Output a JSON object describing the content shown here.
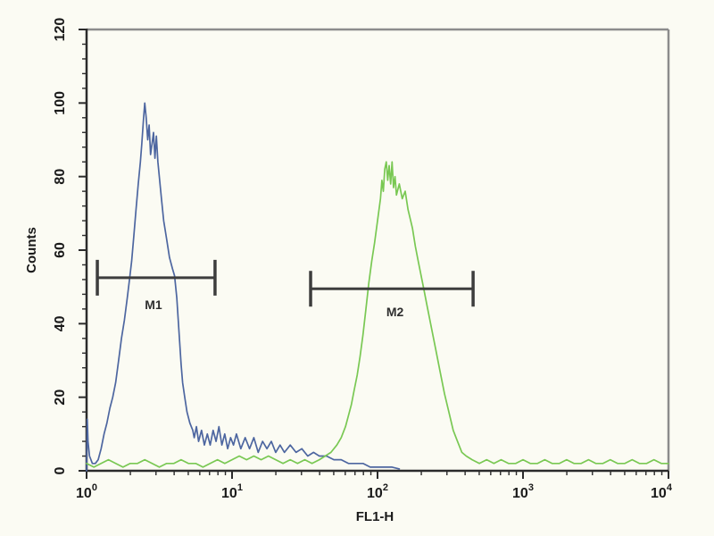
{
  "chart_data": {
    "type": "line",
    "chart_kind": "flow-cytometry-histogram",
    "title": "",
    "xlabel": "FL1-H",
    "ylabel": "Counts",
    "x_scale": "log10",
    "xlim_log10": [
      0,
      4
    ],
    "x_ticks": {
      "base": "10",
      "exponents": [
        "0",
        "1",
        "2",
        "3",
        "4"
      ]
    },
    "ylim": [
      0,
      120
    ],
    "y_ticks": [
      0,
      20,
      40,
      60,
      80,
      100,
      120
    ],
    "y_minor_step": 4,
    "grid": false,
    "legend": "none",
    "colors": {
      "blue_series": "#4d66a0",
      "green_series": "#79c853",
      "marker": "#3d3d3d",
      "axis": "#2b2b2b",
      "frame": "#8c8c8c",
      "tick_label": "#1a1a1a",
      "background": "#fbfbf3"
    },
    "peaks": [
      {
        "series": "blue",
        "x_log10": 0.4,
        "max_counts": 100
      },
      {
        "series": "green",
        "x_log10": 2.1,
        "max_counts": 84
      }
    ],
    "markers": [
      {
        "label": "M1",
        "x_from_log10": 0.074,
        "x_to_log10": 0.883,
        "y_counts": 52.5,
        "label_x_log10": 0.46,
        "label_y_counts": 44
      },
      {
        "label": "M2",
        "x_from_log10": 1.54,
        "x_to_log10": 2.657,
        "y_counts": 49.5,
        "label_x_log10": 2.12,
        "label_y_counts": 42
      }
    ],
    "series": [
      {
        "name": "blue-histogram",
        "color": "#4d66a0",
        "points": [
          [
            0.0,
            0
          ],
          [
            0.005,
            14
          ],
          [
            0.01,
            8
          ],
          [
            0.02,
            4
          ],
          [
            0.04,
            2
          ],
          [
            0.06,
            2
          ],
          [
            0.08,
            3
          ],
          [
            0.1,
            6
          ],
          [
            0.12,
            10
          ],
          [
            0.14,
            13
          ],
          [
            0.16,
            17
          ],
          [
            0.18,
            20
          ],
          [
            0.2,
            24
          ],
          [
            0.22,
            30
          ],
          [
            0.24,
            36
          ],
          [
            0.26,
            41
          ],
          [
            0.28,
            47
          ],
          [
            0.295,
            52
          ],
          [
            0.31,
            57
          ],
          [
            0.325,
            64
          ],
          [
            0.34,
            71
          ],
          [
            0.355,
            78
          ],
          [
            0.37,
            84
          ],
          [
            0.38,
            89
          ],
          [
            0.39,
            95
          ],
          [
            0.4,
            100
          ],
          [
            0.41,
            96
          ],
          [
            0.42,
            90
          ],
          [
            0.43,
            94
          ],
          [
            0.44,
            86
          ],
          [
            0.45,
            89
          ],
          [
            0.46,
            92
          ],
          [
            0.47,
            85
          ],
          [
            0.48,
            91
          ],
          [
            0.49,
            84
          ],
          [
            0.5,
            80
          ],
          [
            0.515,
            74
          ],
          [
            0.53,
            68
          ],
          [
            0.55,
            63
          ],
          [
            0.57,
            58
          ],
          [
            0.59,
            55
          ],
          [
            0.605,
            53
          ],
          [
            0.62,
            47
          ],
          [
            0.63,
            41
          ],
          [
            0.64,
            35
          ],
          [
            0.65,
            29
          ],
          [
            0.66,
            24
          ],
          [
            0.675,
            20
          ],
          [
            0.69,
            16
          ],
          [
            0.71,
            13
          ],
          [
            0.73,
            11
          ],
          [
            0.74,
            9
          ],
          [
            0.755,
            12
          ],
          [
            0.77,
            8
          ],
          [
            0.79,
            11
          ],
          [
            0.81,
            7
          ],
          [
            0.83,
            10
          ],
          [
            0.85,
            7
          ],
          [
            0.87,
            11
          ],
          [
            0.89,
            8
          ],
          [
            0.91,
            12
          ],
          [
            0.93,
            7
          ],
          [
            0.95,
            10
          ],
          [
            0.97,
            6
          ],
          [
            0.99,
            9
          ],
          [
            1.01,
            7
          ],
          [
            1.03,
            10
          ],
          [
            1.06,
            6
          ],
          [
            1.09,
            9
          ],
          [
            1.12,
            6
          ],
          [
            1.15,
            9
          ],
          [
            1.18,
            5
          ],
          [
            1.21,
            8
          ],
          [
            1.24,
            6
          ],
          [
            1.27,
            8
          ],
          [
            1.3,
            5
          ],
          [
            1.33,
            7
          ],
          [
            1.36,
            5
          ],
          [
            1.4,
            7
          ],
          [
            1.44,
            5
          ],
          [
            1.48,
            6
          ],
          [
            1.52,
            4
          ],
          [
            1.56,
            5
          ],
          [
            1.6,
            4
          ],
          [
            1.65,
            4
          ],
          [
            1.7,
            3
          ],
          [
            1.75,
            3
          ],
          [
            1.8,
            2
          ],
          [
            1.85,
            2
          ],
          [
            1.9,
            2
          ],
          [
            1.95,
            1
          ],
          [
            2.0,
            1
          ],
          [
            2.05,
            1
          ],
          [
            2.1,
            1
          ],
          [
            2.15,
            0.5
          ]
        ]
      },
      {
        "name": "green-histogram",
        "color": "#79c853",
        "points": [
          [
            0.0,
            2
          ],
          [
            0.05,
            1
          ],
          [
            0.1,
            2
          ],
          [
            0.15,
            3
          ],
          [
            0.2,
            2
          ],
          [
            0.25,
            1
          ],
          [
            0.3,
            2
          ],
          [
            0.35,
            2
          ],
          [
            0.4,
            3
          ],
          [
            0.45,
            2
          ],
          [
            0.5,
            1
          ],
          [
            0.55,
            2
          ],
          [
            0.6,
            2
          ],
          [
            0.65,
            3
          ],
          [
            0.7,
            2
          ],
          [
            0.75,
            2
          ],
          [
            0.8,
            1
          ],
          [
            0.85,
            2
          ],
          [
            0.9,
            3
          ],
          [
            0.95,
            2
          ],
          [
            1.0,
            3
          ],
          [
            1.05,
            4
          ],
          [
            1.1,
            3
          ],
          [
            1.15,
            4
          ],
          [
            1.2,
            3
          ],
          [
            1.25,
            4
          ],
          [
            1.3,
            3
          ],
          [
            1.35,
            2
          ],
          [
            1.4,
            3
          ],
          [
            1.45,
            2
          ],
          [
            1.5,
            3
          ],
          [
            1.55,
            2
          ],
          [
            1.6,
            3
          ],
          [
            1.64,
            4
          ],
          [
            1.68,
            5
          ],
          [
            1.72,
            7
          ],
          [
            1.75,
            9
          ],
          [
            1.78,
            12
          ],
          [
            1.8,
            15
          ],
          [
            1.82,
            18
          ],
          [
            1.84,
            22
          ],
          [
            1.86,
            26
          ],
          [
            1.88,
            31
          ],
          [
            1.9,
            37
          ],
          [
            1.92,
            44
          ],
          [
            1.94,
            51
          ],
          [
            1.96,
            57
          ],
          [
            1.98,
            62
          ],
          [
            2.0,
            68
          ],
          [
            2.02,
            74
          ],
          [
            2.03,
            79
          ],
          [
            2.04,
            76
          ],
          [
            2.05,
            82
          ],
          [
            2.06,
            84
          ],
          [
            2.07,
            79
          ],
          [
            2.08,
            83
          ],
          [
            2.09,
            78
          ],
          [
            2.1,
            84
          ],
          [
            2.11,
            77
          ],
          [
            2.12,
            80
          ],
          [
            2.13,
            75
          ],
          [
            2.15,
            78
          ],
          [
            2.17,
            74
          ],
          [
            2.19,
            76
          ],
          [
            2.21,
            71
          ],
          [
            2.24,
            66
          ],
          [
            2.26,
            61
          ],
          [
            2.28,
            57
          ],
          [
            2.3,
            53
          ],
          [
            2.32,
            49
          ],
          [
            2.34,
            45
          ],
          [
            2.37,
            39
          ],
          [
            2.4,
            33
          ],
          [
            2.43,
            27
          ],
          [
            2.46,
            21
          ],
          [
            2.49,
            16
          ],
          [
            2.52,
            11
          ],
          [
            2.55,
            8
          ],
          [
            2.58,
            5
          ],
          [
            2.61,
            4
          ],
          [
            2.65,
            3
          ],
          [
            2.7,
            2
          ],
          [
            2.75,
            3
          ],
          [
            2.8,
            2
          ],
          [
            2.85,
            3
          ],
          [
            2.9,
            2
          ],
          [
            2.95,
            2
          ],
          [
            3.0,
            3
          ],
          [
            3.05,
            2
          ],
          [
            3.1,
            2
          ],
          [
            3.15,
            3
          ],
          [
            3.2,
            2
          ],
          [
            3.25,
            2
          ],
          [
            3.3,
            3
          ],
          [
            3.35,
            2
          ],
          [
            3.4,
            2
          ],
          [
            3.45,
            3
          ],
          [
            3.5,
            2
          ],
          [
            3.55,
            2
          ],
          [
            3.6,
            3
          ],
          [
            3.65,
            2
          ],
          [
            3.7,
            2
          ],
          [
            3.75,
            3
          ],
          [
            3.8,
            2
          ],
          [
            3.85,
            2
          ],
          [
            3.9,
            3
          ],
          [
            3.95,
            2
          ],
          [
            4.0,
            2
          ]
        ]
      }
    ]
  }
}
